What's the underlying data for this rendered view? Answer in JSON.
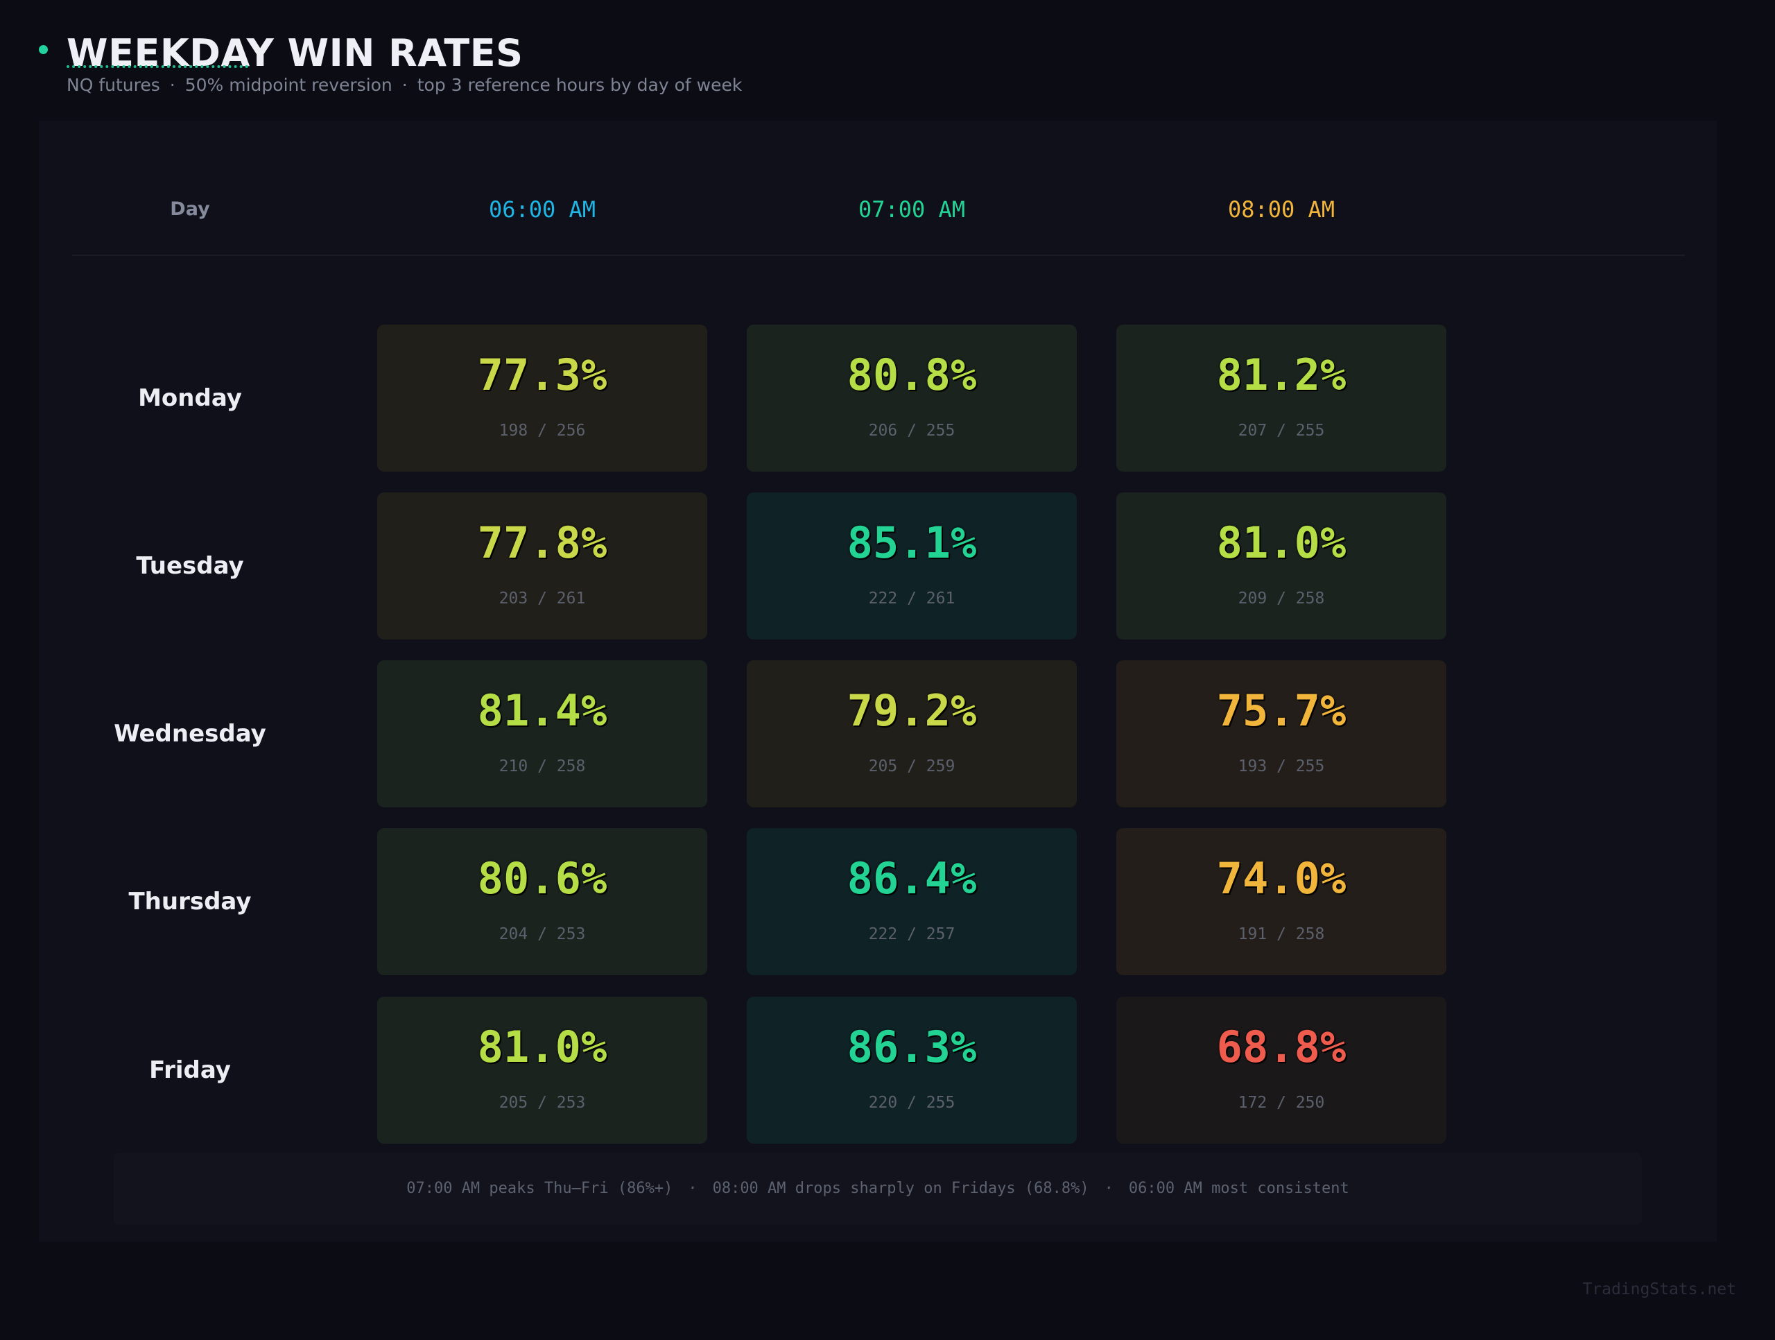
{
  "header": {
    "title": "WEEKDAY WIN RATES",
    "subtitle_parts": [
      "NQ futures",
      "50% midpoint reversion",
      "top 3 reference hours by day of week"
    ],
    "separator": "·"
  },
  "colors": {
    "accent": "#22d3a0",
    "hour_6": "#1fb6e6",
    "hour_7": "#22d394",
    "hour_8": "#f2b53c"
  },
  "chart_data": {
    "type": "table",
    "title": "WEEKDAY WIN RATES",
    "row_header": "Day",
    "columns": [
      "06:00 AM",
      "07:00 AM",
      "08:00 AM"
    ],
    "rows": [
      {
        "day": "Monday",
        "cells": [
          {
            "pct": "77.3%",
            "value": 77.3,
            "count": "198 / 256"
          },
          {
            "pct": "80.8%",
            "value": 80.8,
            "count": "206 / 255"
          },
          {
            "pct": "81.2%",
            "value": 81.2,
            "count": "207 / 255"
          }
        ]
      },
      {
        "day": "Tuesday",
        "cells": [
          {
            "pct": "77.8%",
            "value": 77.8,
            "count": "203 / 261"
          },
          {
            "pct": "85.1%",
            "value": 85.1,
            "count": "222 / 261"
          },
          {
            "pct": "81.0%",
            "value": 81.0,
            "count": "209 / 258"
          }
        ]
      },
      {
        "day": "Wednesday",
        "cells": [
          {
            "pct": "81.4%",
            "value": 81.4,
            "count": "210 / 258"
          },
          {
            "pct": "79.2%",
            "value": 79.2,
            "count": "205 / 259"
          },
          {
            "pct": "75.7%",
            "value": 75.7,
            "count": "193 / 255"
          }
        ]
      },
      {
        "day": "Thursday",
        "cells": [
          {
            "pct": "80.6%",
            "value": 80.6,
            "count": "204 / 253"
          },
          {
            "pct": "86.4%",
            "value": 86.4,
            "count": "222 / 257"
          },
          {
            "pct": "74.0%",
            "value": 74.0,
            "count": "191 / 258"
          }
        ]
      },
      {
        "day": "Friday",
        "cells": [
          {
            "pct": "81.0%",
            "value": 81.0,
            "count": "205 / 253"
          },
          {
            "pct": "86.3%",
            "value": 86.3,
            "count": "220 / 255"
          },
          {
            "pct": "68.8%",
            "value": 68.8,
            "count": "172 / 250"
          }
        ]
      }
    ]
  },
  "footnote": {
    "parts": [
      "07:00 AM peaks Thu–Fri (86%+)",
      "08:00 AM drops sharply on Fridays (68.8%)",
      "06:00 AM most consistent"
    ],
    "separator": "·"
  },
  "watermark": "TradingStats.net"
}
